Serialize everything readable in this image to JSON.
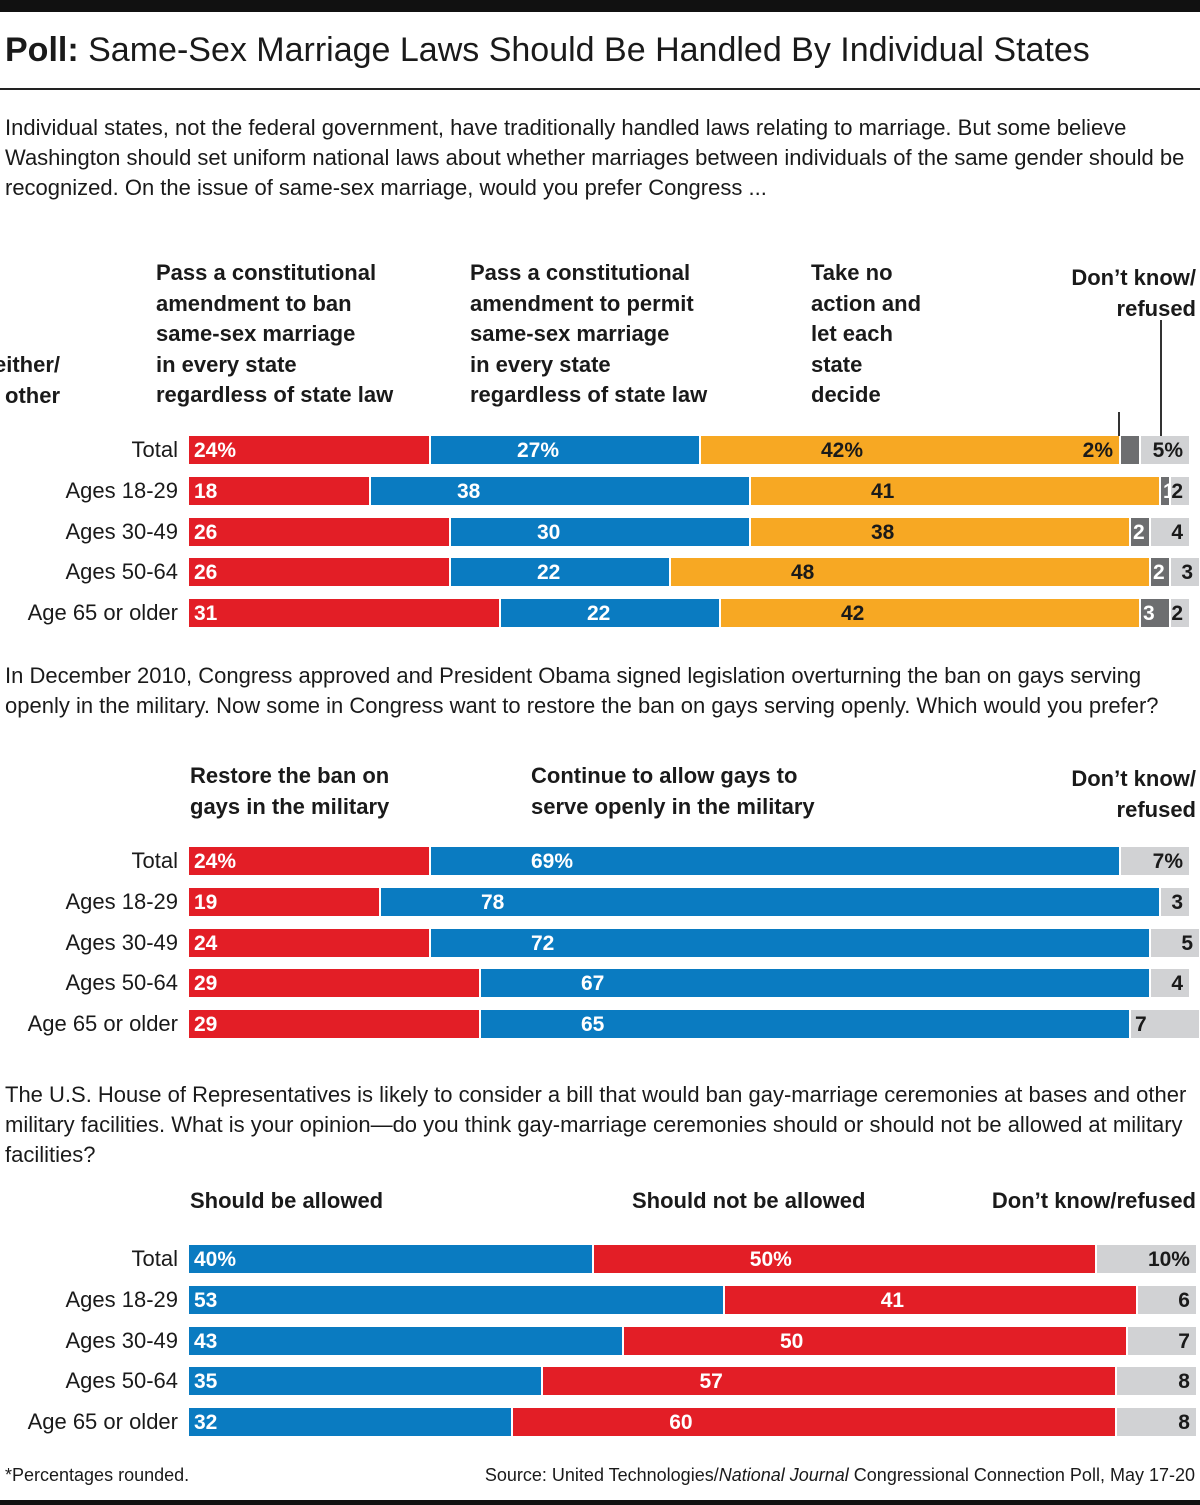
{
  "title": {
    "prefix": "Poll:",
    "text": "Same-Sex Marriage Laws Should Be Handled By Individual States"
  },
  "colors": {
    "red": "#e31e26",
    "blue": "#0a7bc1",
    "orange": "#f7a823",
    "dark_gray": "#6d6e70",
    "light_gray": "#d1d2d4"
  },
  "chart_data": [
    {
      "type": "bar",
      "orientation": "horizontal",
      "stacked": true,
      "question": "Individual states, not the federal government, have traditionally handled laws relating to marriage. But some believe Washington should set uniform national laws about whether marriages between individuals of the same gender should be recognized. On the issue of same-sex marriage, would you prefer Congress ...",
      "categories": [
        "Total",
        "Ages 18-29",
        "Ages 30-49",
        "Ages 50-64",
        "Age 65 or older"
      ],
      "series": [
        {
          "name": "Pass a constitutional amendment to ban same-sex marriage in every state regardless of state law",
          "color": "red",
          "values": [
            24,
            18,
            26,
            26,
            31
          ],
          "labels": [
            "24%",
            "18",
            "26",
            "26",
            "31"
          ]
        },
        {
          "name": "Pass a constitutional amendment to permit same-sex marriage in every state regardless of state law",
          "color": "blue",
          "values": [
            27,
            38,
            30,
            22,
            22
          ],
          "labels": [
            "27%",
            "38",
            "30",
            "22",
            "22"
          ]
        },
        {
          "name": "Take no action and let each state decide",
          "color": "orange",
          "values": [
            42,
            41,
            38,
            48,
            42
          ],
          "labels": [
            "42%",
            "41",
            "38",
            "48",
            "42"
          ]
        },
        {
          "name": "Neither/ other",
          "color": "dark_gray",
          "values": [
            2,
            1,
            2,
            2,
            3
          ],
          "labels": [
            "2%",
            "1",
            "2",
            "2",
            "3"
          ]
        },
        {
          "name": "Don’t know/ refused",
          "color": "light_gray",
          "values": [
            5,
            2,
            4,
            3,
            2
          ],
          "labels": [
            "5%",
            "2",
            "4",
            "3",
            "2"
          ]
        }
      ]
    },
    {
      "type": "bar",
      "orientation": "horizontal",
      "stacked": true,
      "question": "In December 2010, Congress approved and President Obama signed legislation overturning the ban on gays serving openly in the military. Now some in Congress want to restore the ban on gays serving openly. Which would you prefer?",
      "categories": [
        "Total",
        "Ages 18-29",
        "Ages 30-49",
        "Ages 50-64",
        "Age 65 or older"
      ],
      "series": [
        {
          "name": "Restore the ban on gays in the military",
          "color": "red",
          "values": [
            24,
            19,
            24,
            29,
            29
          ],
          "labels": [
            "24%",
            "19",
            "24",
            "29",
            "29"
          ]
        },
        {
          "name": "Continue to allow gays to serve openly  in the military",
          "color": "blue",
          "values": [
            69,
            78,
            72,
            67,
            65
          ],
          "labels": [
            "69%",
            "78",
            "72",
            "67",
            "65"
          ]
        },
        {
          "name": "Don’t know/ refused",
          "color": "light_gray",
          "values": [
            7,
            3,
            5,
            4,
            7
          ],
          "labels": [
            "7%",
            "3",
            "5",
            "4",
            "7"
          ]
        }
      ]
    },
    {
      "type": "bar",
      "orientation": "horizontal",
      "stacked": true,
      "question": "The U.S. House of Representatives is likely to consider a bill that would ban gay-marriage ceremonies at bases and other military facilities. What is your opinion—do you think gay-marriage ceremonies should or should not be allowed at military facilities?",
      "categories": [
        "Total",
        "Ages 18-29",
        "Ages 30-49",
        "Ages 50-64",
        "Age 65 or older"
      ],
      "series": [
        {
          "name": "Should be allowed",
          "color": "blue",
          "values": [
            40,
            53,
            43,
            35,
            32
          ],
          "labels": [
            "40%",
            "53",
            "43",
            "35",
            "32"
          ]
        },
        {
          "name": "Should not be allowed",
          "color": "red",
          "values": [
            50,
            41,
            50,
            57,
            60
          ],
          "labels": [
            "50%",
            "41",
            "50",
            "57",
            "60"
          ]
        },
        {
          "name": "Don’t know/refused",
          "color": "light_gray",
          "values": [
            10,
            6,
            7,
            8,
            8
          ],
          "labels": [
            "10%",
            "6",
            "7",
            "8",
            "8"
          ]
        }
      ]
    }
  ],
  "footnote": "*Percentages rounded.",
  "source": {
    "prefix": "Source: United Technologies/",
    "italic": "National Journal",
    "suffix": " Congressional Connection Poll, May 17-20"
  }
}
